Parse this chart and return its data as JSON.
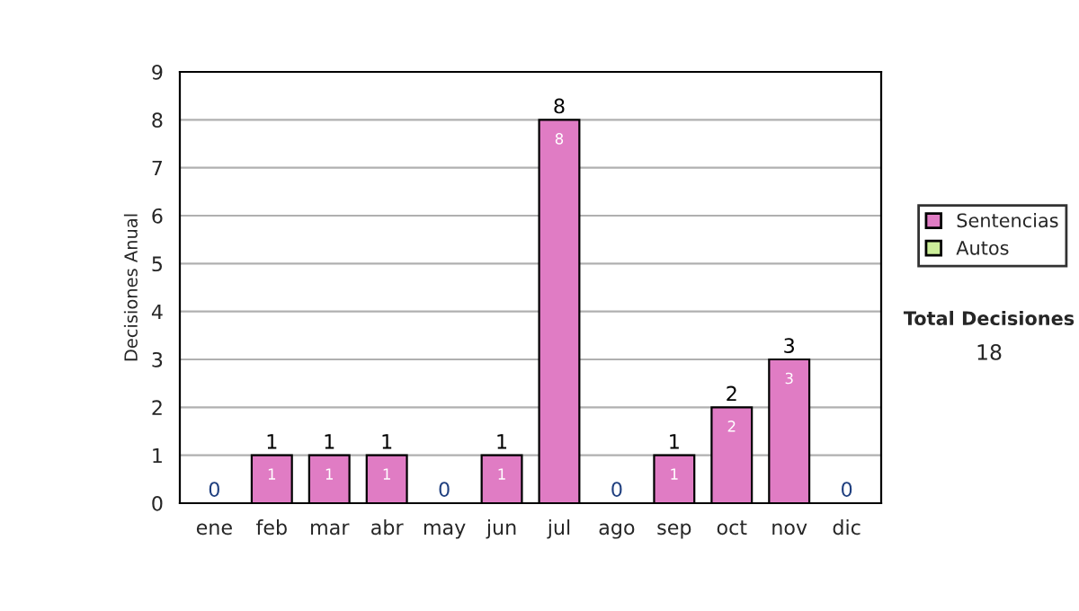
{
  "chart_data": {
    "type": "bar",
    "stacked": true,
    "ylabel": "Decisiones Anual",
    "categories": [
      "ene",
      "feb",
      "mar",
      "abr",
      "may",
      "jun",
      "jul",
      "ago",
      "sep",
      "oct",
      "nov",
      "dic"
    ],
    "series": [
      {
        "name": "Sentencias",
        "color": "#e07cc4",
        "values": [
          0,
          1,
          1,
          1,
          0,
          1,
          8,
          0,
          1,
          2,
          3,
          0
        ],
        "value_labels": [
          null,
          "1",
          "1",
          "1",
          null,
          "1",
          "8",
          null,
          "1",
          "2",
          "3",
          null
        ]
      },
      {
        "name": "Autos",
        "color": "#ccee99",
        "values": [
          0,
          0,
          0,
          0,
          0,
          0,
          0,
          0,
          0,
          0,
          0,
          0
        ]
      }
    ],
    "totals": [
      "0",
      "1",
      "1",
      "1",
      "0",
      "1",
      "8",
      "0",
      "1",
      "2",
      "3",
      "0"
    ],
    "ylim": [
      0,
      9
    ],
    "yticks": [
      0,
      1,
      2,
      3,
      4,
      5,
      6,
      7,
      8,
      9
    ],
    "grid": "y",
    "legend": "right",
    "annotations": [
      "Total Decisiones",
      "18"
    ]
  }
}
